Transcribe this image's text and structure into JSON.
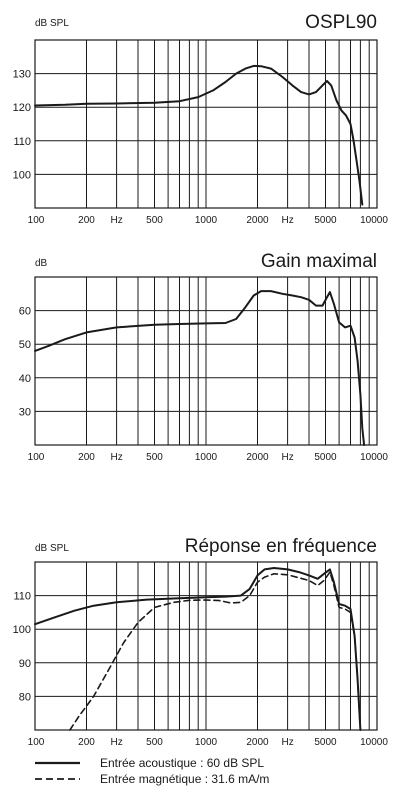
{
  "chart_data": [
    {
      "type": "line",
      "title": "OSPL90",
      "ylabel": "dB SPL",
      "xscale": "log",
      "xlim": [
        100,
        10000
      ],
      "ylim": [
        90,
        140
      ],
      "yticks": [
        "100",
        "110",
        "120",
        "130"
      ],
      "xticks": [
        "100",
        "200",
        "Hz",
        "500",
        "1000",
        "2000",
        "Hz",
        "5000",
        "10000"
      ],
      "grid": true,
      "series": [
        {
          "style": "solid",
          "x": [
            100,
            150,
            200,
            300,
            500,
            700,
            900,
            1100,
            1300,
            1500,
            1700,
            1900,
            2100,
            2400,
            2800,
            3200,
            3600,
            4000,
            4400,
            4800,
            5100,
            5400,
            5800,
            6200,
            6600,
            7000,
            7300,
            7600,
            7900,
            8200
          ],
          "y": [
            120.5,
            120.7,
            121,
            121.1,
            121.3,
            121.8,
            123,
            125,
            127.5,
            130,
            131.5,
            132.3,
            132.2,
            131.5,
            129,
            126.5,
            124.5,
            123.8,
            124.5,
            126.5,
            127.8,
            126.5,
            122,
            119,
            117.5,
            115,
            110,
            104,
            98,
            91
          ]
        }
      ]
    },
    {
      "type": "line",
      "title": "Gain maximal",
      "ylabel": "dB",
      "xscale": "log",
      "xlim": [
        100,
        10000
      ],
      "ylim": [
        20,
        70
      ],
      "yticks": [
        "30",
        "40",
        "50",
        "60"
      ],
      "xticks": [
        "100",
        "200",
        "Hz",
        "500",
        "1000",
        "2000",
        "Hz",
        "5000",
        "10000"
      ],
      "grid": true,
      "series": [
        {
          "style": "solid",
          "x": [
            100,
            120,
            150,
            200,
            300,
            500,
            700,
            1000,
            1300,
            1500,
            1700,
            1900,
            2100,
            2400,
            2800,
            3200,
            3600,
            4000,
            4400,
            4800,
            5100,
            5300,
            5600,
            6000,
            6500,
            7000,
            7400,
            7700,
            8000,
            8200,
            8400
          ],
          "y": [
            48,
            49.5,
            51.5,
            53.5,
            55,
            55.8,
            56,
            56.2,
            56.3,
            57.5,
            61,
            64.5,
            65.8,
            65.8,
            65,
            64.5,
            64,
            63.2,
            61.5,
            61.5,
            64,
            65.5,
            62,
            56.5,
            55,
            55.5,
            52,
            45,
            35,
            25,
            20
          ]
        }
      ]
    },
    {
      "type": "line",
      "title": "Réponse en fréquence",
      "ylabel": "dB SPL",
      "xscale": "log",
      "xlim": [
        100,
        10000
      ],
      "ylim": [
        70,
        120
      ],
      "yticks": [
        "80",
        "90",
        "100",
        "110"
      ],
      "xticks": [
        "100",
        "200",
        "Hz",
        "500",
        "1000",
        "2000",
        "Hz",
        "5000",
        "10000"
      ],
      "grid": true,
      "series": [
        {
          "name": "Entrée acoustique : 60 dB SPL",
          "style": "solid",
          "x": [
            100,
            130,
            170,
            220,
            300,
            450,
            700,
            1000,
            1300,
            1600,
            1800,
            2000,
            2200,
            2500,
            3000,
            3500,
            4000,
            4500,
            4900,
            5300,
            5600,
            6000,
            6500,
            7000,
            7400,
            7700,
            8000
          ],
          "y": [
            101.5,
            103.5,
            105.5,
            107,
            108,
            108.8,
            109.2,
            109.5,
            109.7,
            110,
            112,
            116,
            117.8,
            118.2,
            117.8,
            117,
            116,
            115,
            116.5,
            117.8,
            114,
            107.5,
            107,
            106,
            98,
            85,
            70
          ]
        },
        {
          "name": "Entrée magnétique : 31.6 mA/m",
          "style": "dashed",
          "x": [
            160,
            180,
            220,
            270,
            330,
            400,
            500,
            650,
            800,
            1000,
            1200,
            1400,
            1600,
            1800,
            2000,
            2200,
            2500,
            3000,
            3500,
            4000,
            4500,
            4900,
            5300,
            5600,
            6000,
            6500,
            7000,
            7400,
            7700,
            8000
          ],
          "y": [
            70,
            74,
            80,
            88,
            96,
            102,
            106.5,
            108,
            108.6,
            108.7,
            108.5,
            107.8,
            108,
            110,
            114,
            115.5,
            116.5,
            116.2,
            115.3,
            114.5,
            113,
            114.5,
            117,
            113,
            106.5,
            106,
            105,
            98,
            85,
            70
          ]
        }
      ]
    }
  ]
}
